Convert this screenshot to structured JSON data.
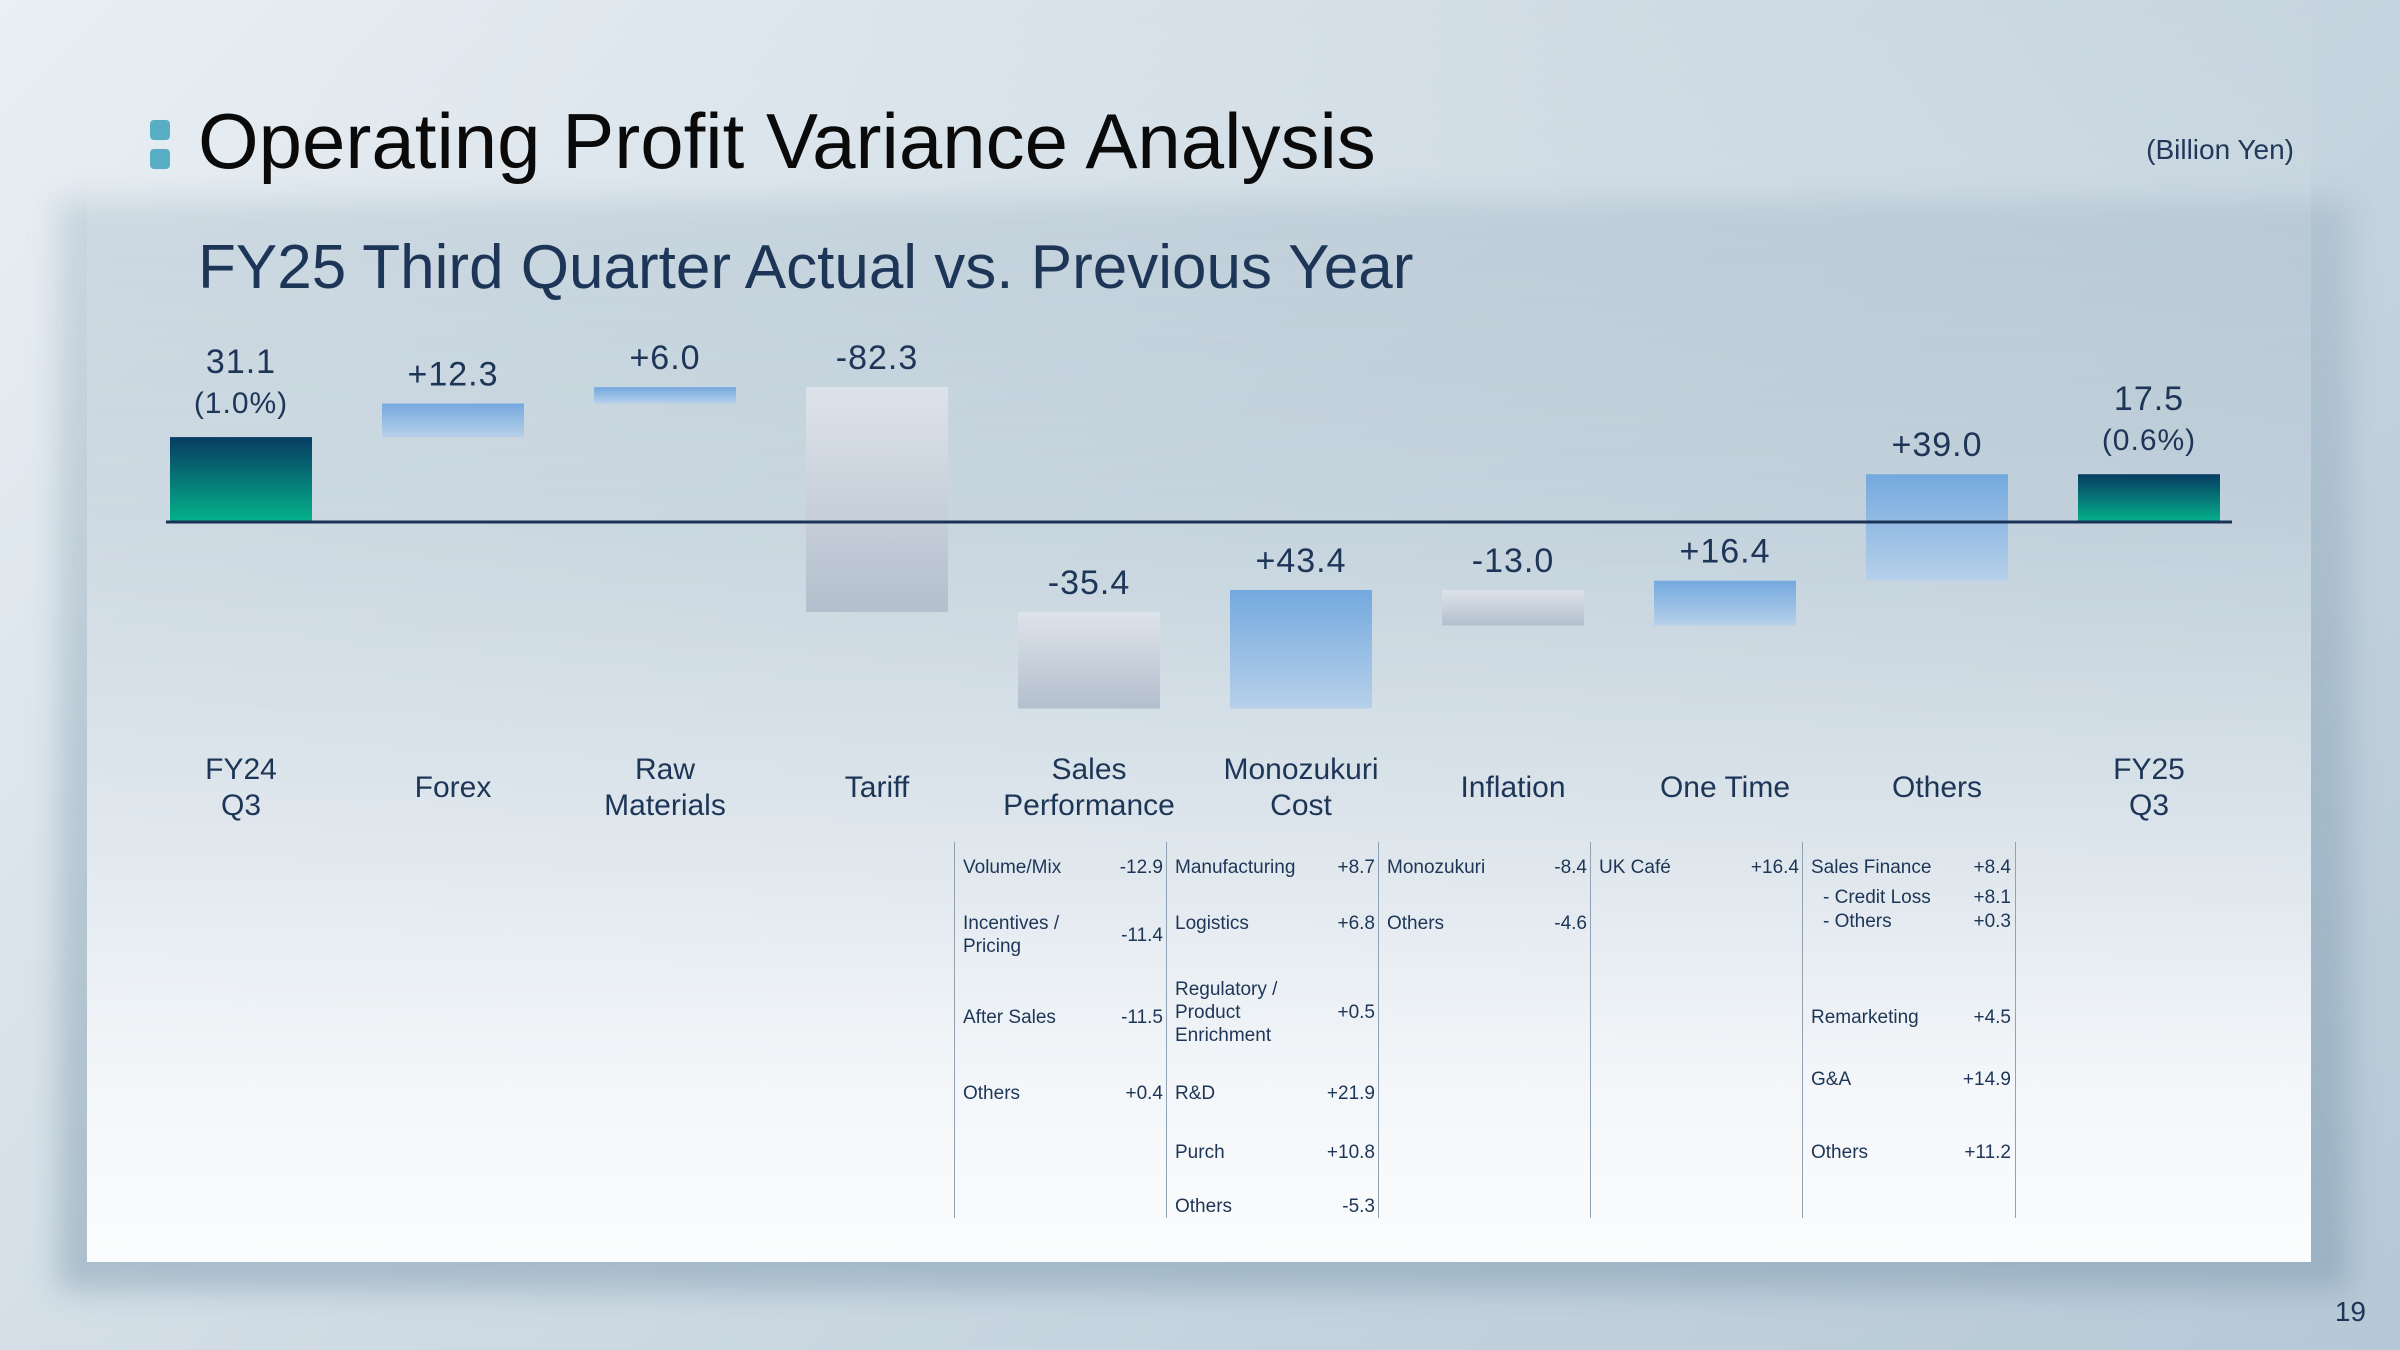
{
  "header": {
    "title": "Operating Profit Variance Analysis",
    "subtitle": "FY25 Third Quarter Actual vs. Previous Year",
    "unit": "(Billion Yen)"
  },
  "page_number": "19",
  "colors": {
    "total_top": "#073c62",
    "total_bottom": "#05b28c",
    "increase": "#74a9de",
    "decrease": "#c3ccd8",
    "baseline": "#1c3358",
    "text": "#1d3557"
  },
  "chart_data": {
    "type": "bar",
    "subtype": "waterfall",
    "unit": "Billion Yen",
    "categories": [
      "FY24\nQ3",
      "Forex",
      "Raw\nMaterials",
      "Tariff",
      "Sales\nPerformance",
      "Monozukuri\nCost",
      "Inflation",
      "One Time",
      "Others",
      "FY25\nQ3"
    ],
    "values": [
      31.1,
      12.3,
      6.0,
      -82.3,
      -35.4,
      43.4,
      -13.0,
      16.4,
      39.0,
      17.5
    ],
    "kinds": [
      "total",
      "increase",
      "increase",
      "decrease",
      "decrease",
      "increase",
      "decrease",
      "increase",
      "increase",
      "total"
    ],
    "value_labels": [
      "31.1",
      "+12.3",
      "+6.0",
      "-82.3",
      "-35.4",
      "+43.4",
      "-13.0",
      "+16.4",
      "+39.0",
      "17.5"
    ],
    "margin_labels": [
      "(1.0%)",
      "",
      "",
      "",
      "",
      "",
      "",
      "",
      "",
      "(0.6%)"
    ]
  },
  "details": [
    {
      "category": "Sales Performance",
      "rows": [
        {
          "label": "Volume/Mix",
          "value": "-12.9"
        },
        {
          "label": "Incentives / Pricing",
          "value": "-11.4"
        },
        {
          "label": "After Sales",
          "value": "-11.5"
        },
        {
          "label": "Others",
          "value": "+0.4"
        }
      ]
    },
    {
      "category": "Monozukuri Cost",
      "rows": [
        {
          "label": "Manufacturing",
          "value": "+8.7"
        },
        {
          "label": "Logistics",
          "value": "+6.8"
        },
        {
          "label": "Regulatory / Product Enrichment",
          "value": "+0.5"
        },
        {
          "label": "R&D",
          "value": "+21.9"
        },
        {
          "label": "Purch",
          "value": "+10.8"
        },
        {
          "label": "Others",
          "value": "-5.3"
        }
      ]
    },
    {
      "category": "Inflation",
      "rows": [
        {
          "label": "Monozukuri",
          "value": "-8.4"
        },
        {
          "label": "Others",
          "value": "-4.6"
        }
      ]
    },
    {
      "category": "One Time",
      "rows": [
        {
          "label": "UK Café",
          "value": "+16.4"
        }
      ]
    },
    {
      "category": "Others",
      "rows": [
        {
          "label": "Sales Finance",
          "value": "+8.4"
        },
        {
          "label": " - Credit Loss",
          "value": "+8.1"
        },
        {
          "label": " - Others",
          "value": "+0.3"
        },
        {
          "label": "Remarketing",
          "value": "+4.5"
        },
        {
          "label": "G&A",
          "value": "+14.9"
        },
        {
          "label": "Others",
          "value": "+11.2"
        }
      ]
    }
  ]
}
